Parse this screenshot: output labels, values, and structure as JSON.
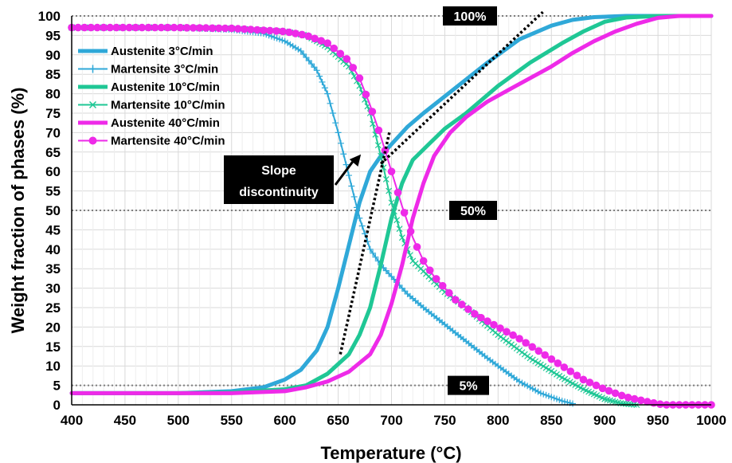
{
  "chart_data": {
    "type": "line",
    "xlabel": "Temperature (°C)",
    "ylabel": "Weight fraction of phases (%)",
    "xlim": [
      400,
      1000
    ],
    "ylim": [
      0,
      100
    ],
    "xticks": [
      400,
      450,
      500,
      550,
      600,
      650,
      700,
      750,
      800,
      850,
      900,
      950,
      1000
    ],
    "yticks": [
      0,
      5,
      10,
      15,
      20,
      25,
      30,
      35,
      40,
      45,
      50,
      55,
      60,
      65,
      70,
      75,
      80,
      85,
      90,
      95,
      100
    ],
    "grid": true,
    "legend_position": "top-left",
    "series": [
      {
        "name": "Austenite 3°C/min",
        "color": "#2fa8d8",
        "marker": "none",
        "width": 5,
        "x": [
          400,
          500,
          550,
          580,
          600,
          615,
          630,
          640,
          650,
          660,
          670,
          680,
          690,
          700,
          715,
          730,
          760,
          790,
          820,
          850,
          870,
          890,
          920,
          960,
          1000
        ],
        "y": [
          3,
          3,
          3.5,
          4.5,
          6.5,
          9,
          14,
          20,
          30,
          41,
          52,
          60,
          64,
          67,
          71.5,
          75,
          81.5,
          88,
          94,
          97.5,
          99,
          99.7,
          100,
          100,
          100
        ]
      },
      {
        "name": "Martensite 3°C/min",
        "color": "#2fa8d8",
        "marker": "plus",
        "width": 2,
        "x": [
          400,
          500,
          550,
          580,
          600,
          615,
          630,
          640,
          650,
          660,
          670,
          680,
          690,
          700,
          715,
          730,
          760,
          790,
          820,
          840,
          860,
          870
        ],
        "y": [
          97,
          97,
          96.5,
          95.5,
          93.5,
          91,
          86,
          80,
          70,
          59,
          48,
          40,
          36,
          33,
          28.5,
          25,
          18.5,
          12,
          6,
          3,
          1,
          0.3
        ]
      },
      {
        "name": "Austenite 10°C/min",
        "color": "#1fc795",
        "marker": "none",
        "width": 5,
        "x": [
          400,
          500,
          550,
          600,
          620,
          640,
          660,
          670,
          680,
          690,
          700,
          710,
          720,
          735,
          750,
          770,
          800,
          830,
          860,
          880,
          900,
          920,
          950,
          1000
        ],
        "y": [
          3,
          3,
          3.2,
          4,
          5,
          8,
          13,
          18,
          25,
          36,
          48,
          57,
          63,
          67,
          71,
          75,
          82,
          88,
          93,
          96,
          98.5,
          99.6,
          100,
          100
        ]
      },
      {
        "name": "Martensite 10°C/min",
        "color": "#1fc795",
        "marker": "x",
        "width": 2,
        "x": [
          400,
          500,
          550,
          600,
          620,
          640,
          660,
          670,
          680,
          690,
          700,
          710,
          720,
          735,
          750,
          770,
          800,
          830,
          860,
          880,
          900,
          915,
          930
        ],
        "y": [
          97,
          97,
          96.8,
          96,
          95,
          92,
          87,
          82,
          75,
          64,
          52,
          43,
          37,
          33,
          29,
          25,
          18,
          12,
          7,
          4,
          1.5,
          0.4,
          0
        ]
      },
      {
        "name": "Austenite 40°C/min",
        "color": "#ee2ae8",
        "marker": "none",
        "width": 5,
        "x": [
          400,
          500,
          550,
          600,
          620,
          640,
          660,
          680,
          690,
          700,
          710,
          720,
          730,
          740,
          745,
          755,
          770,
          790,
          810,
          830,
          850,
          870,
          890,
          910,
          930,
          950,
          970,
          1000
        ],
        "y": [
          3,
          3,
          3,
          3.5,
          4.5,
          6,
          8.5,
          13,
          18,
          26,
          36,
          48,
          57,
          64,
          66,
          70,
          74,
          78,
          81,
          84,
          87,
          90.5,
          93.5,
          96,
          98,
          99.5,
          100,
          100
        ]
      },
      {
        "name": "Martensite 40°C/min",
        "color": "#ee2ae8",
        "marker": "circle",
        "width": 2,
        "x": [
          400,
          500,
          550,
          600,
          620,
          640,
          660,
          670,
          680,
          690,
          700,
          710,
          720,
          730,
          740,
          750,
          760,
          780,
          800,
          820,
          840,
          860,
          880,
          900,
          920,
          940,
          955,
          965,
          980,
          1000
        ],
        "y": [
          97,
          97,
          96.8,
          96,
          95,
          93,
          88.5,
          84,
          77,
          69,
          60,
          51,
          43,
          37,
          33,
          30,
          27,
          23,
          20,
          17,
          13.5,
          10,
          6.5,
          4,
          2,
          0.8,
          0,
          0,
          0,
          0
        ]
      }
    ],
    "reference_lines": [
      {
        "value": 100,
        "label": "100%"
      },
      {
        "value": 50,
        "label": "50%"
      },
      {
        "value": 5,
        "label": "5%"
      }
    ],
    "annotation": {
      "text_line1": "Slope",
      "text_line2": "discontinuity",
      "target_x": 690,
      "target_y": 65
    },
    "tangent_lines": [
      {
        "x": [
          652,
          698
        ],
        "y": [
          13,
          70
        ]
      },
      {
        "x": [
          690,
          842
        ],
        "y": [
          62,
          101
        ]
      }
    ]
  }
}
